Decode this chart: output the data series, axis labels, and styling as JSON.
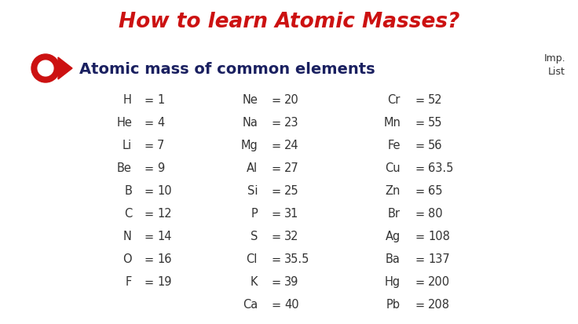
{
  "title": "How to learn Atomic Masses?",
  "subtitle": "Atomic mass of common elements",
  "imp_label": "Imp.\nList",
  "bg_color": "#ffffff",
  "title_color": "#cc1111",
  "subtitle_color": "#1a2060",
  "text_color": "#333333",
  "logo_color": "#cc1111",
  "col1": {
    "elements": [
      "H",
      "He",
      "Li",
      "Be",
      "B",
      "C",
      "N",
      "O",
      "F"
    ],
    "values": [
      "1",
      "4",
      "7",
      "9",
      "10",
      "12",
      "14",
      "16",
      "19"
    ]
  },
  "col2": {
    "elements": [
      "Ne",
      "Na",
      "Mg",
      "Al",
      "Si",
      "P",
      "S",
      "Cl",
      "K",
      "Ca"
    ],
    "values": [
      "20",
      "23",
      "24",
      "27",
      "25",
      "31",
      "32",
      "35.5",
      "39",
      "40"
    ]
  },
  "col3": {
    "elements": [
      "Cr",
      "Mn",
      "Fe",
      "Cu",
      "Zn",
      "Br",
      "Ag",
      "Ba",
      "Hg",
      "Pb"
    ],
    "values": [
      "52",
      "55",
      "56",
      "63.5",
      "65",
      "80",
      "108",
      "137",
      "200",
      "208"
    ]
  },
  "figw": 7.36,
  "figh": 4.14,
  "dpi": 100
}
